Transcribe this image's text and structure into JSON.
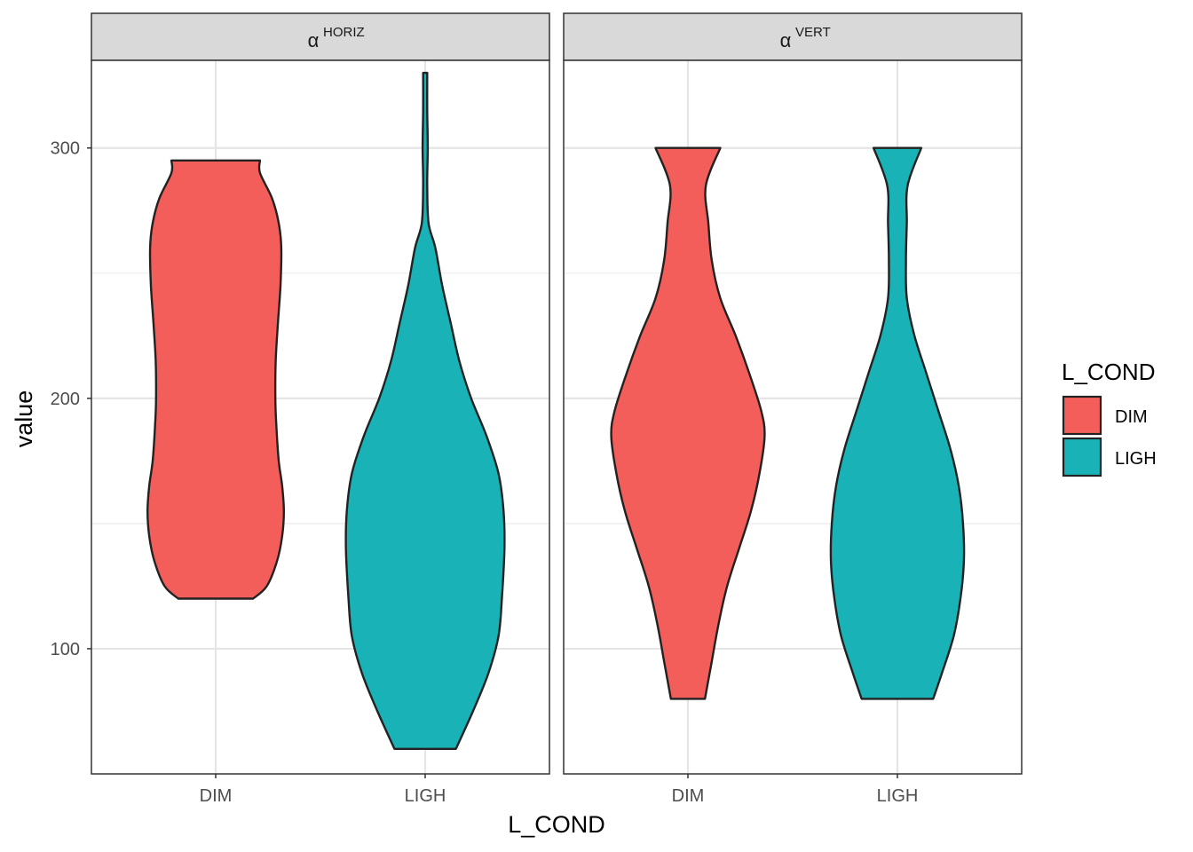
{
  "chart_data": {
    "type": "violin",
    "xlabel": "L_COND",
    "ylabel": "value",
    "ylim": [
      50,
      335
    ],
    "yticks": [
      100,
      200,
      300
    ],
    "categories": [
      "DIM",
      "LIGH"
    ],
    "colors": {
      "DIM": "#F35E5A",
      "LIGH": "#19B2B7"
    },
    "grid": true,
    "legend": {
      "title": "L_COND",
      "position": "right",
      "entries": [
        "DIM",
        "LIGH"
      ]
    },
    "panels": [
      {
        "greek": "α",
        "sup": "HORIZ",
        "violins": [
          {
            "category": "DIM",
            "min": 120,
            "max": 295,
            "profile": [
              [
                120,
                0.22
              ],
              [
                125,
                0.3
              ],
              [
                135,
                0.36
              ],
              [
                145,
                0.39
              ],
              [
                155,
                0.4
              ],
              [
                165,
                0.39
              ],
              [
                175,
                0.37
              ],
              [
                190,
                0.355
              ],
              [
                200,
                0.35
              ],
              [
                215,
                0.352
              ],
              [
                230,
                0.365
              ],
              [
                245,
                0.38
              ],
              [
                260,
                0.385
              ],
              [
                270,
                0.37
              ],
              [
                280,
                0.33
              ],
              [
                290,
                0.26
              ],
              [
                295,
                0.26
              ]
            ]
          },
          {
            "category": "LIGH",
            "min": 60,
            "max": 330,
            "profile": [
              [
                60,
                0.18
              ],
              [
                75,
                0.28
              ],
              [
                90,
                0.37
              ],
              [
                105,
                0.43
              ],
              [
                120,
                0.45
              ],
              [
                140,
                0.465
              ],
              [
                155,
                0.46
              ],
              [
                170,
                0.43
              ],
              [
                185,
                0.36
              ],
              [
                200,
                0.27
              ],
              [
                215,
                0.2
              ],
              [
                230,
                0.15
              ],
              [
                245,
                0.1
              ],
              [
                260,
                0.06
              ],
              [
                270,
                0.02
              ],
              [
                285,
                0.012
              ],
              [
                300,
                0.015
              ],
              [
                315,
                0.012
              ],
              [
                330,
                0.012
              ]
            ]
          }
        ]
      },
      {
        "greek": "α",
        "sup": "VERT",
        "violins": [
          {
            "category": "DIM",
            "min": 80,
            "max": 300,
            "profile": [
              [
                80,
                0.1
              ],
              [
                95,
                0.14
              ],
              [
                110,
                0.18
              ],
              [
                125,
                0.23
              ],
              [
                140,
                0.3
              ],
              [
                155,
                0.37
              ],
              [
                170,
                0.42
              ],
              [
                185,
                0.45
              ],
              [
                195,
                0.43
              ],
              [
                210,
                0.36
              ],
              [
                225,
                0.28
              ],
              [
                240,
                0.19
              ],
              [
                255,
                0.14
              ],
              [
                270,
                0.12
              ],
              [
                285,
                0.105
              ],
              [
                300,
                0.19
              ]
            ]
          },
          {
            "category": "LIGH",
            "min": 80,
            "max": 300,
            "profile": [
              [
                80,
                0.21
              ],
              [
                90,
                0.26
              ],
              [
                105,
                0.33
              ],
              [
                120,
                0.37
              ],
              [
                135,
                0.39
              ],
              [
                150,
                0.385
              ],
              [
                165,
                0.36
              ],
              [
                180,
                0.31
              ],
              [
                195,
                0.24
              ],
              [
                210,
                0.17
              ],
              [
                225,
                0.1
              ],
              [
                240,
                0.055
              ],
              [
                255,
                0.05
              ],
              [
                270,
                0.055
              ],
              [
                285,
                0.06
              ],
              [
                300,
                0.14
              ]
            ]
          }
        ]
      }
    ]
  }
}
